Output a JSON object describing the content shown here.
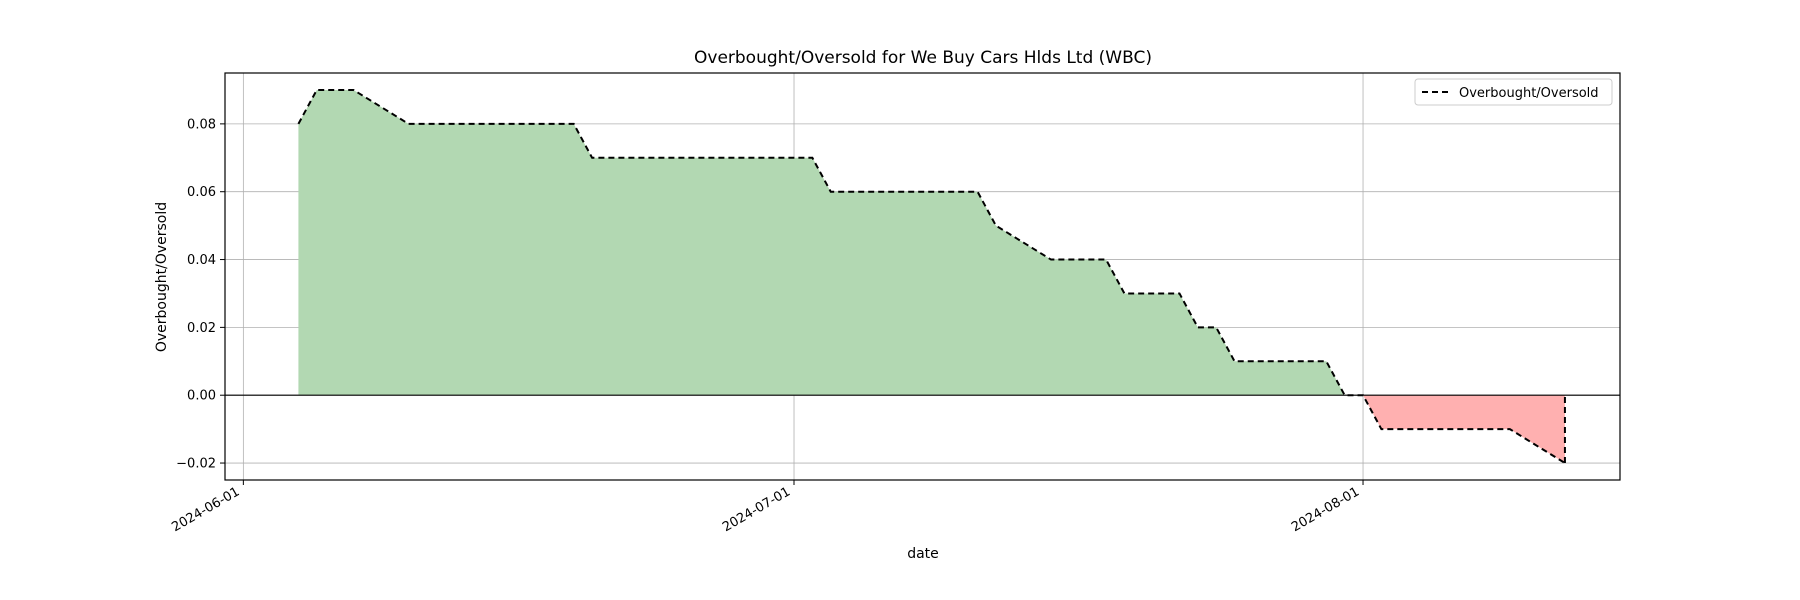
{
  "chart_data": {
    "type": "area",
    "title": "Overbought/Oversold for We Buy Cars Hlds Ltd (WBC)",
    "xlabel": "date",
    "ylabel": "Overbought/Oversold",
    "ylim": [
      -0.025,
      0.095
    ],
    "xlim": [
      "2024-05-31",
      "2024-08-15"
    ],
    "x_ticks": [
      "2024-06-01",
      "2024-07-01",
      "2024-08-01"
    ],
    "y_ticks": [
      -0.02,
      0.0,
      0.02,
      0.04,
      0.06,
      0.08
    ],
    "y_tick_labels": [
      "−0.02",
      "0.00",
      "0.02",
      "0.04",
      "0.06",
      "0.08"
    ],
    "grid": true,
    "legend_position": "top-right",
    "series": [
      {
        "name": "Overbought/Oversold",
        "style": "dashed",
        "color": "#000000",
        "x": [
          "2024-06-04",
          "2024-06-05",
          "2024-06-06",
          "2024-06-07",
          "2024-06-10",
          "2024-06-11",
          "2024-06-12",
          "2024-06-13",
          "2024-06-14",
          "2024-06-17",
          "2024-06-18",
          "2024-06-19",
          "2024-06-20",
          "2024-06-21",
          "2024-06-24",
          "2024-06-25",
          "2024-06-26",
          "2024-06-27",
          "2024-06-28",
          "2024-07-01",
          "2024-07-02",
          "2024-07-03",
          "2024-07-04",
          "2024-07-05",
          "2024-07-08",
          "2024-07-09",
          "2024-07-10",
          "2024-07-11",
          "2024-07-12",
          "2024-07-15",
          "2024-07-16",
          "2024-07-17",
          "2024-07-18",
          "2024-07-19",
          "2024-07-22",
          "2024-07-23",
          "2024-07-24",
          "2024-07-25",
          "2024-07-26",
          "2024-07-29",
          "2024-07-30",
          "2024-07-31",
          "2024-08-01",
          "2024-08-02",
          "2024-08-05",
          "2024-08-06",
          "2024-08-07",
          "2024-08-08",
          "2024-08-09",
          "2024-08-12"
        ],
        "values": [
          0.08,
          0.09,
          0.09,
          0.09,
          0.08,
          0.08,
          0.08,
          0.08,
          0.08,
          0.08,
          0.08,
          0.08,
          0.07,
          0.07,
          0.07,
          0.07,
          0.07,
          0.07,
          0.07,
          0.07,
          0.07,
          0.06,
          0.06,
          0.06,
          0.06,
          0.06,
          0.06,
          0.06,
          0.05,
          0.04,
          0.04,
          0.04,
          0.04,
          0.03,
          0.03,
          0.02,
          0.02,
          0.01,
          0.01,
          0.01,
          0.01,
          0.0,
          0.0,
          -0.01,
          -0.01,
          -0.01,
          -0.01,
          -0.01,
          -0.01,
          -0.02
        ]
      }
    ],
    "fill_positive_color": "#b2d8b2",
    "fill_negative_color": "#ffb0b0"
  }
}
